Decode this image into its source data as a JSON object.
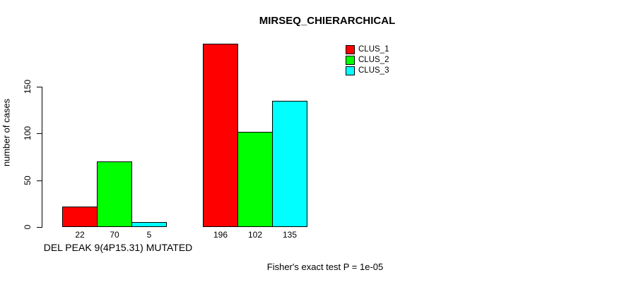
{
  "chart_data": {
    "type": "bar",
    "title": "MIRSEQ_CHIERARCHICAL",
    "ylabel": "number of cases",
    "xlabel": "",
    "ylim": [
      0,
      150
    ],
    "yticks": [
      0,
      50,
      100,
      150
    ],
    "grid": false,
    "legend_position": "top-right",
    "categories": [
      "DEL PEAK 9(4P15.31) MUTATED",
      ""
    ],
    "series": [
      {
        "name": "CLUS_1",
        "color": "#ff0000",
        "values": [
          22,
          196
        ]
      },
      {
        "name": "CLUS_2",
        "color": "#00ff00",
        "values": [
          70,
          102
        ]
      },
      {
        "name": "CLUS_3",
        "color": "#00ffff",
        "values": [
          5,
          135
        ]
      }
    ],
    "show_value_labels": true,
    "annotation": "Fisher's exact test P = 1e-05"
  },
  "colors": {
    "bar_border": "#000000",
    "text": "#000000",
    "background": "#ffffff"
  }
}
